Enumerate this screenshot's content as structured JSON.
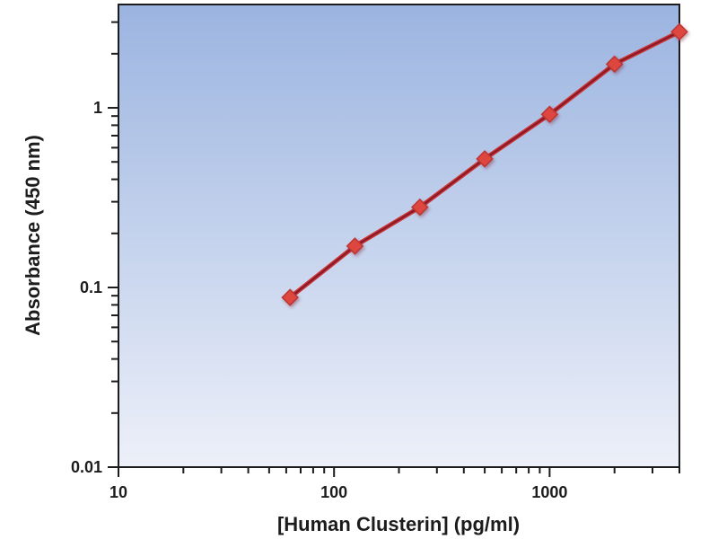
{
  "chart_data": {
    "type": "scatter",
    "title": "",
    "xlabel": "[Human Clusterin] (pg/ml)",
    "ylabel": "Absorbance (450 nm)",
    "x_scale": "log",
    "y_scale": "log",
    "xlim": [
      10,
      4000
    ],
    "ylim": [
      0.01,
      3.76
    ],
    "grid": false,
    "legend": "none",
    "x_ticks": [
      {
        "value": 10,
        "label": "10"
      },
      {
        "value": 100,
        "label": "100"
      },
      {
        "value": 1000,
        "label": "1000"
      }
    ],
    "y_ticks": [
      {
        "value": 0.01,
        "label": "0.01"
      },
      {
        "value": 0.1,
        "label": "0.1"
      },
      {
        "value": 1,
        "label": "1"
      }
    ],
    "series": [
      {
        "marker": "diamond",
        "points": [
          {
            "x": 62.5,
            "y": 0.088
          },
          {
            "x": 125,
            "y": 0.17
          },
          {
            "x": 250,
            "y": 0.28
          },
          {
            "x": 500,
            "y": 0.52
          },
          {
            "x": 1000,
            "y": 0.92
          },
          {
            "x": 2000,
            "y": 1.75
          },
          {
            "x": 4000,
            "y": 2.65
          }
        ]
      }
    ],
    "colors": {
      "plot_bg_top": "#9bb4e0",
      "plot_bg_bottom": "#edf0f9",
      "axis": "#1c1c1c",
      "line_outer": "#cd3637",
      "line_inner": "#8a1a28",
      "marker_fill": "#dd473f",
      "marker_edge": "#bc3531"
    }
  }
}
